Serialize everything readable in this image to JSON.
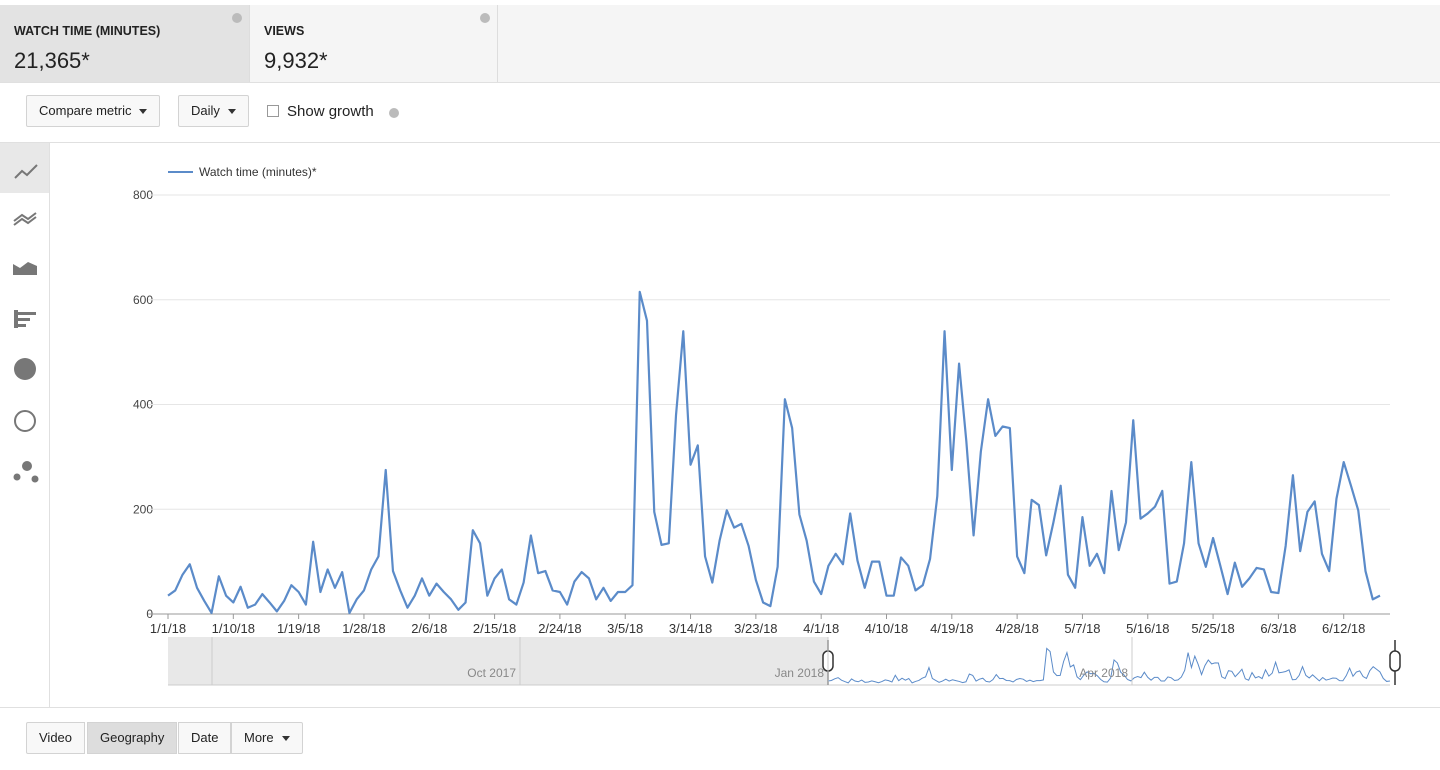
{
  "metrics": [
    {
      "label": "WATCH TIME (MINUTES)",
      "value": "21,365*"
    },
    {
      "label": "VIEWS",
      "value": "9,932*"
    }
  ],
  "controls": {
    "compare": "Compare metric",
    "period": "Daily",
    "growth": "Show growth"
  },
  "chart_data": {
    "type": "line",
    "series": [
      {
        "name": "Watch time (minutes)*",
        "color": "#5b8bc9",
        "values": [
          35,
          45,
          75,
          95,
          50,
          25,
          2,
          72,
          35,
          22,
          52,
          12,
          18,
          38,
          22,
          5,
          25,
          55,
          42,
          18,
          138,
          42,
          85,
          50,
          80,
          2,
          28,
          45,
          85,
          110,
          275,
          82,
          45,
          12,
          35,
          68,
          35,
          58,
          42,
          28,
          8,
          22,
          160,
          135,
          35,
          68,
          85,
          28,
          18,
          60,
          150,
          78,
          82,
          45,
          42,
          18,
          62,
          80,
          68,
          28,
          50,
          25,
          42,
          42,
          55,
          615,
          560,
          195,
          132,
          135,
          380,
          540,
          285,
          322,
          110,
          60,
          140,
          198,
          165,
          172,
          130,
          65,
          22,
          15,
          90,
          410,
          355,
          190,
          140,
          62,
          38,
          92,
          115,
          95,
          192,
          102,
          50,
          100,
          100,
          35,
          35,
          108,
          92,
          45,
          55,
          105,
          225,
          540,
          275,
          478,
          330,
          150,
          310,
          410,
          340,
          358,
          355,
          110,
          78,
          218,
          208,
          112,
          175,
          245,
          75,
          50,
          185,
          92,
          115,
          78,
          235,
          122,
          175,
          370,
          182,
          192,
          205,
          235,
          58,
          62,
          135,
          290,
          135,
          90,
          145,
          92,
          38,
          98,
          52,
          68,
          88,
          85,
          42,
          40,
          130,
          265,
          120,
          195,
          215,
          115,
          82,
          220,
          290,
          245,
          198,
          82,
          28,
          35
        ]
      }
    ],
    "xlim": [
      0,
      167
    ],
    "xticks": [
      {
        "value": 0,
        "label": "1/1/18"
      },
      {
        "value": 9,
        "label": "1/10/18"
      },
      {
        "value": 18,
        "label": "1/19/18"
      },
      {
        "value": 27,
        "label": "1/28/18"
      },
      {
        "value": 36,
        "label": "2/6/18"
      },
      {
        "value": 45,
        "label": "2/15/18"
      },
      {
        "value": 54,
        "label": "2/24/18"
      },
      {
        "value": 63,
        "label": "3/5/18"
      },
      {
        "value": 72,
        "label": "3/14/18"
      },
      {
        "value": 81,
        "label": "3/23/18"
      },
      {
        "value": 90,
        "label": "4/1/18"
      },
      {
        "value": 99,
        "label": "4/10/18"
      },
      {
        "value": 108,
        "label": "4/19/18"
      },
      {
        "value": 117,
        "label": "4/28/18"
      },
      {
        "value": 126,
        "label": "5/7/18"
      },
      {
        "value": 135,
        "label": "5/16/18"
      },
      {
        "value": 144,
        "label": "5/25/18"
      },
      {
        "value": 153,
        "label": "6/3/18"
      },
      {
        "value": 162,
        "label": "6/12/18"
      }
    ],
    "ylim": [
      0,
      800
    ],
    "yticks": [
      0,
      200,
      400,
      600,
      800
    ],
    "grid": true,
    "navigator_labels": [
      "Oct 2017",
      "Jan 2018",
      "Apr 2018"
    ]
  },
  "tabs": [
    "Video",
    "Geography",
    "Date",
    "More"
  ]
}
